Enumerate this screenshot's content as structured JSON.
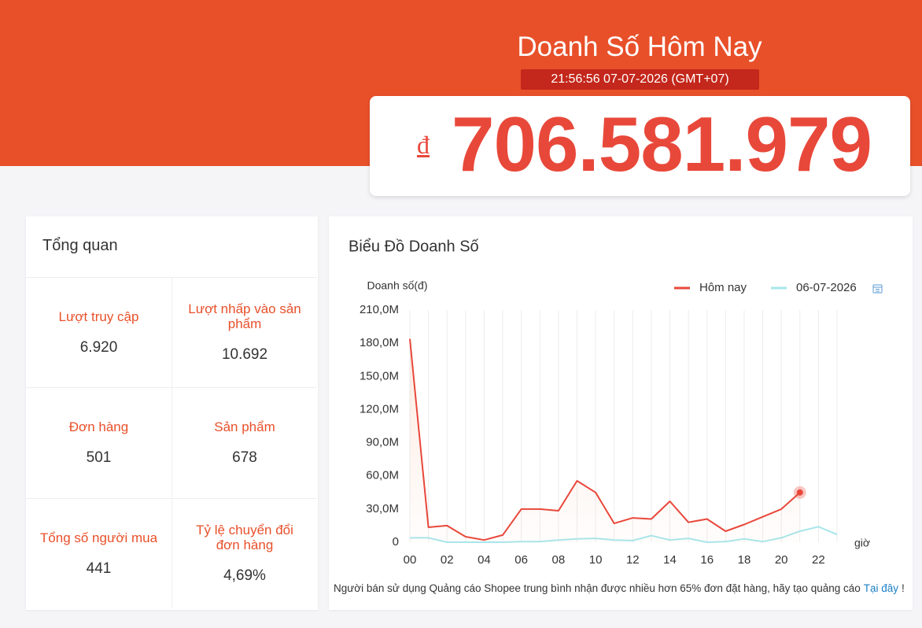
{
  "header": {
    "title": "Doanh Số Hôm Nay",
    "timestamp": "21:56:56 07-07-2026 (GMT+07)",
    "currency": "đ",
    "total": "706.581.979"
  },
  "overview": {
    "title": "Tổng quan",
    "items": [
      {
        "label": "Lượt truy cập",
        "value": "6.920"
      },
      {
        "label": "Lượt nhấp vào sản phẩm",
        "value": "10.692"
      },
      {
        "label": "Đơn hàng",
        "value": "501"
      },
      {
        "label": "Sản phẩm",
        "value": "678"
      },
      {
        "label": "Tổng số người mua",
        "value": "441"
      },
      {
        "label": "Tỷ lệ chuyển đổi đơn hàng",
        "value": "4,69%"
      }
    ]
  },
  "chart_data": {
    "type": "line",
    "title": "Biểu Đồ Doanh Số",
    "y_label": "Doanh số(đ)",
    "x_label": "giờ",
    "categories": [
      "00",
      null,
      "02",
      null,
      "04",
      null,
      "06",
      null,
      "08",
      null,
      "10",
      null,
      "12",
      null,
      "14",
      null,
      "16",
      null,
      "18",
      null,
      "20",
      null,
      "22",
      null
    ],
    "series": [
      {
        "name": "Hôm nay",
        "color": "#e8483a",
        "values": [
          184,
          13.5,
          15,
          5,
          2,
          6.5,
          30,
          30,
          28.5,
          55.5,
          45,
          17,
          22,
          21,
          37,
          18,
          21,
          10,
          16,
          23,
          30,
          45,
          null,
          null
        ]
      },
      {
        "name": "06-07-2026",
        "color": "#a8e6ea",
        "values": [
          4,
          4,
          0,
          0,
          0,
          0,
          0.5,
          0.5,
          2,
          3,
          3.5,
          2,
          1.5,
          6,
          2,
          3.5,
          0,
          0.5,
          3,
          0.5,
          4,
          10,
          14,
          7
        ]
      }
    ],
    "ylim": [
      0,
      210
    ],
    "yticks": [
      0,
      {
        "value": 30,
        "label": "30,0M"
      },
      {
        "value": 60,
        "label": "60,0M"
      },
      {
        "value": 90,
        "label": "90,0M"
      },
      {
        "value": 120,
        "label": "120,0M"
      },
      {
        "value": 150,
        "label": "150,0M"
      },
      {
        "value": 180,
        "label": "180,0M"
      },
      {
        "value": 210,
        "label": "210,0M"
      }
    ],
    "grid": "vertical",
    "legend": "top-right"
  },
  "footer": {
    "text": "Người bán sử dụng Quảng cáo Shopee trung bình nhận được nhiều hơn 65% đơn đặt hàng, hãy tạo quảng cáo",
    "link": "Tại đây",
    "end": "!"
  }
}
